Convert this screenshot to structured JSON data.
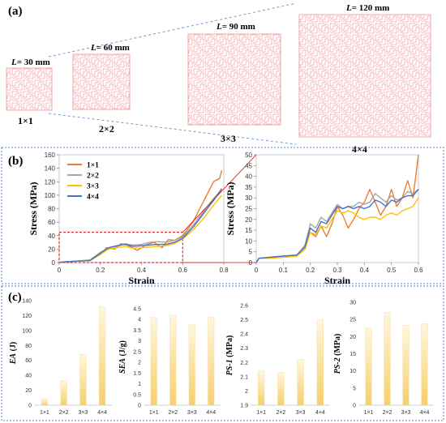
{
  "panel_a": {
    "label": "(a)",
    "items": [
      {
        "length_prefix": "L",
        "length_value": "= 30 mm",
        "grid": "1×1",
        "n": 1
      },
      {
        "length_prefix": "L",
        "length_value": "= 60 mm",
        "grid": "2×2",
        "n": 2
      },
      {
        "length_prefix": "L",
        "length_value": "= 90 mm",
        "grid": "3×3",
        "n": 3
      },
      {
        "length_prefix": "L",
        "length_value": "= 120 mm",
        "grid": "4×4",
        "n": 4
      }
    ],
    "colors": {
      "lattice": "#f2a7ae",
      "dash": "#6f9bd6"
    }
  },
  "panel_b": {
    "label": "(b)"
  },
  "panel_c": {
    "label": "(c)"
  },
  "chart_data": [
    {
      "type": "line",
      "panel": "b-left",
      "xlabel": "Strain",
      "ylabel": "Stress (MPa)",
      "xlim": [
        0,
        0.8
      ],
      "ylim": [
        0,
        160
      ],
      "xticks": [
        "0",
        "0.2",
        "0.4",
        "0.6",
        "0.8"
      ],
      "yticks": [
        "0",
        "20",
        "40",
        "60",
        "80",
        "100",
        "120",
        "140",
        "160"
      ],
      "legend": "top-left",
      "series": [
        {
          "name": "1×1",
          "color": "#ed7d31",
          "points": [
            [
              0,
              0
            ],
            [
              0.02,
              1
            ],
            [
              0.08,
              2
            ],
            [
              0.15,
              3
            ],
            [
              0.2,
              12
            ],
            [
              0.23,
              22
            ],
            [
              0.27,
              20
            ],
            [
              0.3,
              28
            ],
            [
              0.33,
              26
            ],
            [
              0.38,
              18
            ],
            [
              0.42,
              26
            ],
            [
              0.46,
              30
            ],
            [
              0.5,
              22
            ],
            [
              0.53,
              34
            ],
            [
              0.56,
              33
            ],
            [
              0.6,
              40
            ],
            [
              0.65,
              60
            ],
            [
              0.7,
              90
            ],
            [
              0.75,
              120
            ],
            [
              0.78,
              125
            ],
            [
              0.79,
              137
            ]
          ]
        },
        {
          "name": "2×2",
          "color": "#a5a5a5",
          "points": [
            [
              0,
              0
            ],
            [
              0.02,
              1
            ],
            [
              0.08,
              2
            ],
            [
              0.15,
              4
            ],
            [
              0.2,
              15
            ],
            [
              0.24,
              22
            ],
            [
              0.28,
              24
            ],
            [
              0.32,
              28
            ],
            [
              0.36,
              26
            ],
            [
              0.4,
              27
            ],
            [
              0.44,
              30
            ],
            [
              0.48,
              31
            ],
            [
              0.52,
              30
            ],
            [
              0.56,
              33
            ],
            [
              0.6,
              38
            ],
            [
              0.65,
              55
            ],
            [
              0.7,
              75
            ],
            [
              0.75,
              95
            ],
            [
              0.79,
              108
            ]
          ]
        },
        {
          "name": "3×3",
          "color": "#ffc000",
          "points": [
            [
              0,
              0
            ],
            [
              0.02,
              1
            ],
            [
              0.08,
              2
            ],
            [
              0.15,
              3
            ],
            [
              0.2,
              12
            ],
            [
              0.24,
              20
            ],
            [
              0.28,
              22
            ],
            [
              0.32,
              24
            ],
            [
              0.36,
              21
            ],
            [
              0.4,
              22
            ],
            [
              0.44,
              23
            ],
            [
              0.48,
              24
            ],
            [
              0.52,
              25
            ],
            [
              0.56,
              28
            ],
            [
              0.6,
              35
            ],
            [
              0.65,
              48
            ],
            [
              0.7,
              65
            ],
            [
              0.75,
              85
            ],
            [
              0.79,
              100
            ]
          ]
        },
        {
          "name": "4×4",
          "color": "#4472c4",
          "points": [
            [
              0,
              0
            ],
            [
              0.02,
              1
            ],
            [
              0.08,
              2
            ],
            [
              0.15,
              3
            ],
            [
              0.2,
              14
            ],
            [
              0.24,
              22
            ],
            [
              0.28,
              25
            ],
            [
              0.32,
              27
            ],
            [
              0.36,
              24
            ],
            [
              0.4,
              25
            ],
            [
              0.44,
              26
            ],
            [
              0.48,
              27
            ],
            [
              0.52,
              27
            ],
            [
              0.56,
              30
            ],
            [
              0.6,
              36
            ],
            [
              0.65,
              52
            ],
            [
              0.7,
              72
            ],
            [
              0.75,
              92
            ],
            [
              0.79,
              110
            ]
          ]
        }
      ]
    },
    {
      "type": "line",
      "panel": "b-right",
      "xlabel": "Strain",
      "ylabel": "Stress (MPa)",
      "xlim": [
        0,
        0.6
      ],
      "ylim": [
        0,
        50
      ],
      "xticks": [
        "0",
        "0.1",
        "0.2",
        "0.3",
        "0.4",
        "0.5",
        "0.6"
      ],
      "yticks": [
        "0",
        "5",
        "10",
        "15",
        "20",
        "25",
        "30",
        "35",
        "40",
        "45",
        "50"
      ],
      "series": [
        {
          "name": "1×1",
          "color": "#ed7d31",
          "points": [
            [
              0,
              0
            ],
            [
              0.01,
              2
            ],
            [
              0.05,
              2
            ],
            [
              0.1,
              2.5
            ],
            [
              0.15,
              3
            ],
            [
              0.18,
              8
            ],
            [
              0.2,
              14
            ],
            [
              0.22,
              12
            ],
            [
              0.24,
              17
            ],
            [
              0.26,
              12
            ],
            [
              0.28,
              18
            ],
            [
              0.3,
              26
            ],
            [
              0.32,
              22
            ],
            [
              0.34,
              16
            ],
            [
              0.36,
              20
            ],
            [
              0.38,
              25
            ],
            [
              0.4,
              28
            ],
            [
              0.42,
              34
            ],
            [
              0.44,
              28
            ],
            [
              0.46,
              22
            ],
            [
              0.48,
              26
            ],
            [
              0.5,
              34
            ],
            [
              0.52,
              26
            ],
            [
              0.54,
              30
            ],
            [
              0.56,
              38
            ],
            [
              0.58,
              30
            ],
            [
              0.6,
              50
            ]
          ]
        },
        {
          "name": "2×2",
          "color": "#a5a5a5",
          "points": [
            [
              0,
              0
            ],
            [
              0.01,
              2
            ],
            [
              0.05,
              2.5
            ],
            [
              0.1,
              3
            ],
            [
              0.15,
              3.5
            ],
            [
              0.18,
              8
            ],
            [
              0.2,
              18
            ],
            [
              0.22,
              16
            ],
            [
              0.24,
              21
            ],
            [
              0.26,
              19
            ],
            [
              0.28,
              23
            ],
            [
              0.3,
              27
            ],
            [
              0.32,
              25
            ],
            [
              0.34,
              26
            ],
            [
              0.36,
              26
            ],
            [
              0.38,
              28
            ],
            [
              0.4,
              27
            ],
            [
              0.42,
              28
            ],
            [
              0.44,
              32
            ],
            [
              0.46,
              30
            ],
            [
              0.48,
              28
            ],
            [
              0.5,
              31
            ],
            [
              0.52,
              29
            ],
            [
              0.54,
              30
            ],
            [
              0.56,
              33
            ],
            [
              0.58,
              32
            ],
            [
              0.6,
              34
            ]
          ]
        },
        {
          "name": "3×3",
          "color": "#ffc000",
          "points": [
            [
              0,
              0
            ],
            [
              0.01,
              2
            ],
            [
              0.05,
              2
            ],
            [
              0.1,
              2.5
            ],
            [
              0.15,
              3
            ],
            [
              0.18,
              6
            ],
            [
              0.2,
              14
            ],
            [
              0.22,
              13
            ],
            [
              0.24,
              17
            ],
            [
              0.26,
              16
            ],
            [
              0.28,
              20
            ],
            [
              0.3,
              24
            ],
            [
              0.32,
              23
            ],
            [
              0.34,
              24
            ],
            [
              0.36,
              23
            ],
            [
              0.38,
              21
            ],
            [
              0.4,
              20
            ],
            [
              0.42,
              21
            ],
            [
              0.44,
              21
            ],
            [
              0.46,
              20
            ],
            [
              0.48,
              22
            ],
            [
              0.5,
              23
            ],
            [
              0.52,
              22
            ],
            [
              0.54,
              24
            ],
            [
              0.56,
              25
            ],
            [
              0.58,
              26
            ],
            [
              0.6,
              30
            ]
          ]
        },
        {
          "name": "4×4",
          "color": "#4472c4",
          "points": [
            [
              0,
              0
            ],
            [
              0.01,
              2
            ],
            [
              0.05,
              2.5
            ],
            [
              0.1,
              3
            ],
            [
              0.15,
              3.5
            ],
            [
              0.18,
              7
            ],
            [
              0.2,
              16
            ],
            [
              0.22,
              14
            ],
            [
              0.24,
              19
            ],
            [
              0.26,
              18
            ],
            [
              0.28,
              22
            ],
            [
              0.3,
              26
            ],
            [
              0.32,
              25
            ],
            [
              0.34,
              26
            ],
            [
              0.36,
              25
            ],
            [
              0.38,
              26
            ],
            [
              0.4,
              25
            ],
            [
              0.42,
              26
            ],
            [
              0.44,
              29
            ],
            [
              0.46,
              28
            ],
            [
              0.48,
              26
            ],
            [
              0.5,
              29
            ],
            [
              0.52,
              28
            ],
            [
              0.54,
              30
            ],
            [
              0.56,
              31
            ],
            [
              0.58,
              31
            ],
            [
              0.6,
              34
            ]
          ]
        }
      ]
    },
    {
      "type": "bar",
      "panel": "c1",
      "ylabel_prefix": "EA",
      "ylabel_suffix": " (J)",
      "categories": [
        "1×1",
        "2×2",
        "3×3",
        "4×4"
      ],
      "values": [
        8,
        33,
        68,
        132
      ],
      "ylim": [
        0,
        140
      ],
      "yticks": [
        "0",
        "20",
        "40",
        "60",
        "80",
        "100",
        "120",
        "140"
      ]
    },
    {
      "type": "bar",
      "panel": "c2",
      "ylabel_prefix": "SEA",
      "ylabel_suffix": " (J/g)",
      "categories": [
        "1×1",
        "2×2",
        "3×3",
        "4×4"
      ],
      "values": [
        4.1,
        4.2,
        3.75,
        4.1
      ],
      "ylim": [
        0,
        4.5
      ],
      "yticks": [
        "0",
        "0.5",
        "1",
        "1.5",
        "2",
        "2.5",
        "3",
        "3.5",
        "4",
        "4.5"
      ]
    },
    {
      "type": "bar",
      "panel": "c3",
      "ylabel_prefix": "PS-1",
      "ylabel_suffix": " (MPa)",
      "categories": [
        "1×1",
        "2×2",
        "3×3",
        "4×4"
      ],
      "values": [
        2.14,
        2.13,
        2.22,
        2.5
      ],
      "ylim": [
        1.9,
        2.6
      ],
      "yticks": [
        "1.9",
        "2",
        "2.1",
        "2.2",
        "2.3",
        "2.4",
        "2.5",
        "2.6"
      ]
    },
    {
      "type": "bar",
      "panel": "c4",
      "ylabel_prefix": "PS-2",
      "ylabel_suffix": " (MPa)",
      "categories": [
        "1×1",
        "2×2",
        "3×3",
        "4×4"
      ],
      "values": [
        22.5,
        27,
        23.2,
        23.8
      ],
      "ylim": [
        0,
        30
      ],
      "yticks": [
        "0",
        "5",
        "10",
        "15",
        "20",
        "25",
        "30"
      ]
    }
  ]
}
